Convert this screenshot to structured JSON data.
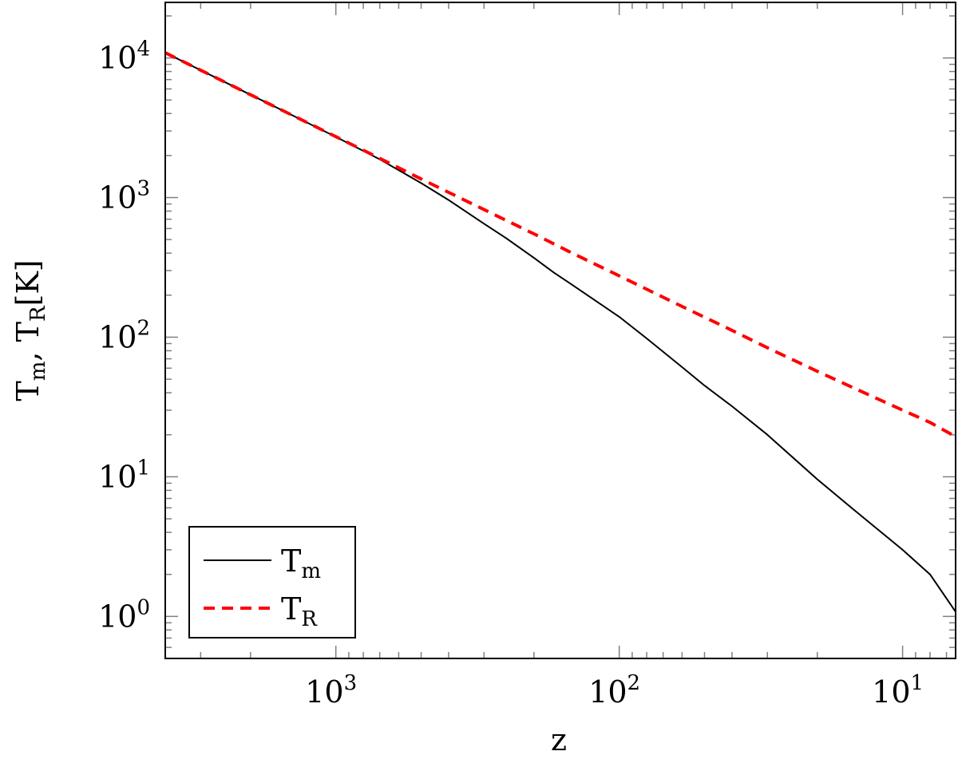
{
  "chart_data": {
    "type": "line",
    "xlabel": "z",
    "ylabel": "Tm, TR[K]",
    "x_scale": "log",
    "y_scale": "log",
    "x_reversed": true,
    "xlim": [
      4000,
      6.5
    ],
    "ylim": [
      0.5,
      25000
    ],
    "grid": false,
    "legend_position": "bottom-left",
    "x_ticks": [
      {
        "value": 1000,
        "base": "10",
        "exp": "3"
      },
      {
        "value": 100,
        "base": "10",
        "exp": "2"
      },
      {
        "value": 10,
        "base": "10",
        "exp": "1"
      }
    ],
    "y_ticks": [
      {
        "value": 1,
        "base": "10",
        "exp": "0"
      },
      {
        "value": 10,
        "base": "10",
        "exp": "1"
      },
      {
        "value": 100,
        "base": "10",
        "exp": "2"
      },
      {
        "value": 1000,
        "base": "10",
        "exp": "3"
      },
      {
        "value": 10000,
        "base": "10",
        "exp": "4"
      }
    ],
    "series": [
      {
        "name": "Tm",
        "color": "#000000",
        "style": "solid",
        "x": [
          4000,
          3000,
          2000,
          1500,
          1000,
          700,
          500,
          400,
          300,
          250,
          200,
          170,
          150,
          120,
          100,
          80,
          60,
          50,
          40,
          30,
          20,
          15,
          10,
          8,
          6.5
        ],
        "y": [
          10900,
          8180,
          5450,
          4090,
          2720,
          1880,
          1270,
          960,
          650,
          510,
          370,
          290,
          245,
          180,
          140,
          98,
          61,
          45,
          32,
          20,
          9.6,
          5.9,
          3.0,
          2.0,
          1.08
        ]
      },
      {
        "name": "TR",
        "color": "#ff0000",
        "style": "dashed",
        "x": [
          4000,
          3000,
          2000,
          1500,
          1000,
          700,
          500,
          400,
          300,
          200,
          150,
          100,
          60,
          40,
          30,
          20,
          15,
          10,
          8,
          6.5
        ],
        "y": [
          10900,
          8180,
          5450,
          4090,
          2730,
          1910,
          1360,
          1090,
          820,
          550,
          410,
          275,
          166,
          112,
          84,
          57,
          43.6,
          30.0,
          24.5,
          19.4
        ]
      }
    ]
  },
  "legend": {
    "tm": {
      "main": "T",
      "sub": "m"
    },
    "tr": {
      "main": "T",
      "sub": "R"
    }
  },
  "axes": {
    "ylabel": {
      "t1": "T",
      "s1": "m",
      "sep": ", ",
      "t2": "T",
      "s2": "R",
      "unit": "[K]"
    },
    "xlabel": "z"
  }
}
